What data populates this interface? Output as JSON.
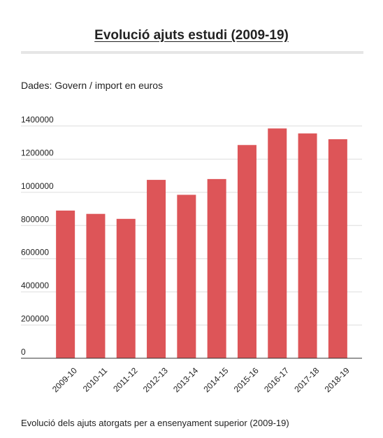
{
  "header": {
    "title": "Evolució ajuts estudi (2009-19)",
    "subtitle": "Dades: Govern / import en euros"
  },
  "footer": {
    "caption": "Evolució dels ajuts atorgats per a ensenyament superior (2009-19)"
  },
  "colors": {
    "bar": "#dd5558",
    "grid": "#dddddd",
    "baseline": "#333333",
    "text": "#222222"
  },
  "chart_data": {
    "type": "bar",
    "title": "",
    "xlabel": "",
    "ylabel": "",
    "categories": [
      "2009-10",
      "2010-11",
      "2011-12",
      "2012-13",
      "2013-14",
      "2014-15",
      "2015-16",
      "2016-17",
      "2017-18",
      "2018-19"
    ],
    "values": [
      890000,
      870000,
      840000,
      1075000,
      985000,
      1080000,
      1285000,
      1385000,
      1355000,
      1320000
    ],
    "ylim": [
      0,
      1400000
    ],
    "yticks": [
      0,
      200000,
      400000,
      600000,
      800000,
      1000000,
      1200000,
      1400000
    ],
    "ytick_labels": [
      "0",
      "200000",
      "400000",
      "600000",
      "800000",
      "1000000",
      "1200000",
      "1400000"
    ],
    "grid": true,
    "legend": "none"
  }
}
